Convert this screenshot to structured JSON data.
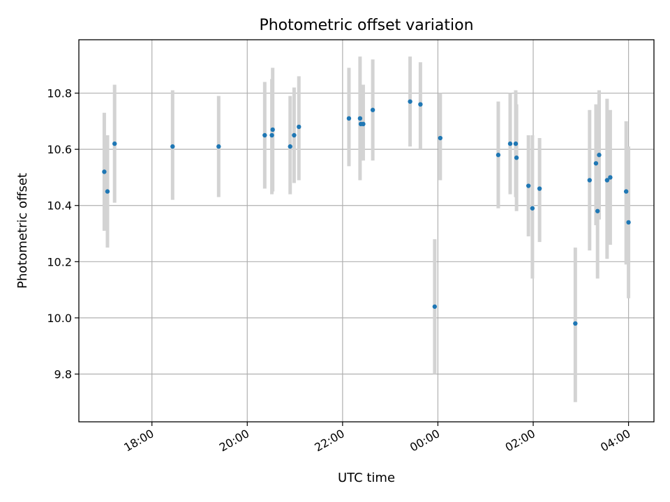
{
  "chart_data": {
    "type": "scatter",
    "title": "Photometric offset variation",
    "xlabel": "UTC time",
    "ylabel": "Photometric offset",
    "x_unit": "UTC time (HH:MM)",
    "xlim": [
      "16:28",
      "04:32"
    ],
    "ylim": [
      9.63,
      10.99
    ],
    "x_ticks": [
      "18:00",
      "20:00",
      "22:00",
      "00:00",
      "02:00",
      "04:00"
    ],
    "y_ticks": [
      9.8,
      10.0,
      10.2,
      10.4,
      10.6,
      10.8
    ],
    "grid": true,
    "marker_color": "#1f77b4",
    "errorbar_color": "#d3d3d3",
    "points": [
      {
        "x": "17:00",
        "y": 10.52,
        "ylo": 10.31,
        "yhi": 10.73
      },
      {
        "x": "17:04",
        "y": 10.45,
        "ylo": 10.25,
        "yhi": 10.65
      },
      {
        "x": "17:13",
        "y": 10.62,
        "ylo": 10.41,
        "yhi": 10.83
      },
      {
        "x": "18:26",
        "y": 10.61,
        "ylo": 10.42,
        "yhi": 10.81
      },
      {
        "x": "19:24",
        "y": 10.61,
        "ylo": 10.43,
        "yhi": 10.79
      },
      {
        "x": "20:22",
        "y": 10.65,
        "ylo": 10.46,
        "yhi": 10.84
      },
      {
        "x": "20:31",
        "y": 10.65,
        "ylo": 10.44,
        "yhi": 10.85
      },
      {
        "x": "20:32",
        "y": 10.67,
        "ylo": 10.45,
        "yhi": 10.89
      },
      {
        "x": "20:54",
        "y": 10.61,
        "ylo": 10.44,
        "yhi": 10.79
      },
      {
        "x": "20:59",
        "y": 10.65,
        "ylo": 10.48,
        "yhi": 10.82
      },
      {
        "x": "21:05",
        "y": 10.68,
        "ylo": 10.49,
        "yhi": 10.86
      },
      {
        "x": "22:08",
        "y": 10.71,
        "ylo": 10.54,
        "yhi": 10.89
      },
      {
        "x": "22:22",
        "y": 10.71,
        "ylo": 10.49,
        "yhi": 10.93
      },
      {
        "x": "22:23",
        "y": 10.69,
        "ylo": 10.56,
        "yhi": 10.83
      },
      {
        "x": "22:26",
        "y": 10.69,
        "ylo": 10.56,
        "yhi": 10.83
      },
      {
        "x": "22:38",
        "y": 10.74,
        "ylo": 10.56,
        "yhi": 10.92
      },
      {
        "x": "23:25",
        "y": 10.77,
        "ylo": 10.61,
        "yhi": 10.93
      },
      {
        "x": "23:38",
        "y": 10.76,
        "ylo": 10.6,
        "yhi": 10.91
      },
      {
        "x": "23:56",
        "y": 10.04,
        "ylo": 9.8,
        "yhi": 10.28
      },
      {
        "x": "00:03",
        "y": 10.64,
        "ylo": 10.49,
        "yhi": 10.8
      },
      {
        "x": "01:16",
        "y": 10.58,
        "ylo": 10.39,
        "yhi": 10.77
      },
      {
        "x": "01:31",
        "y": 10.62,
        "ylo": 10.44,
        "yhi": 10.8
      },
      {
        "x": "01:38",
        "y": 10.62,
        "ylo": 10.43,
        "yhi": 10.81
      },
      {
        "x": "01:39",
        "y": 10.57,
        "ylo": 10.38,
        "yhi": 10.76
      },
      {
        "x": "01:54",
        "y": 10.47,
        "ylo": 10.29,
        "yhi": 10.65
      },
      {
        "x": "01:59",
        "y": 10.39,
        "ylo": 10.14,
        "yhi": 10.65
      },
      {
        "x": "02:08",
        "y": 10.46,
        "ylo": 10.27,
        "yhi": 10.64
      },
      {
        "x": "02:53",
        "y": 9.98,
        "ylo": 9.7,
        "yhi": 10.25
      },
      {
        "x": "03:11",
        "y": 10.49,
        "ylo": 10.24,
        "yhi": 10.74
      },
      {
        "x": "03:19",
        "y": 10.55,
        "ylo": 10.33,
        "yhi": 10.76
      },
      {
        "x": "03:21",
        "y": 10.38,
        "ylo": 10.14,
        "yhi": 10.62
      },
      {
        "x": "03:23",
        "y": 10.58,
        "ylo": 10.35,
        "yhi": 10.81
      },
      {
        "x": "03:33",
        "y": 10.49,
        "ylo": 10.21,
        "yhi": 10.78
      },
      {
        "x": "03:37",
        "y": 10.5,
        "ylo": 10.26,
        "yhi": 10.74
      },
      {
        "x": "03:57",
        "y": 10.45,
        "ylo": 10.19,
        "yhi": 10.7
      },
      {
        "x": "04:00",
        "y": 10.34,
        "ylo": 10.07,
        "yhi": 10.61
      }
    ]
  }
}
